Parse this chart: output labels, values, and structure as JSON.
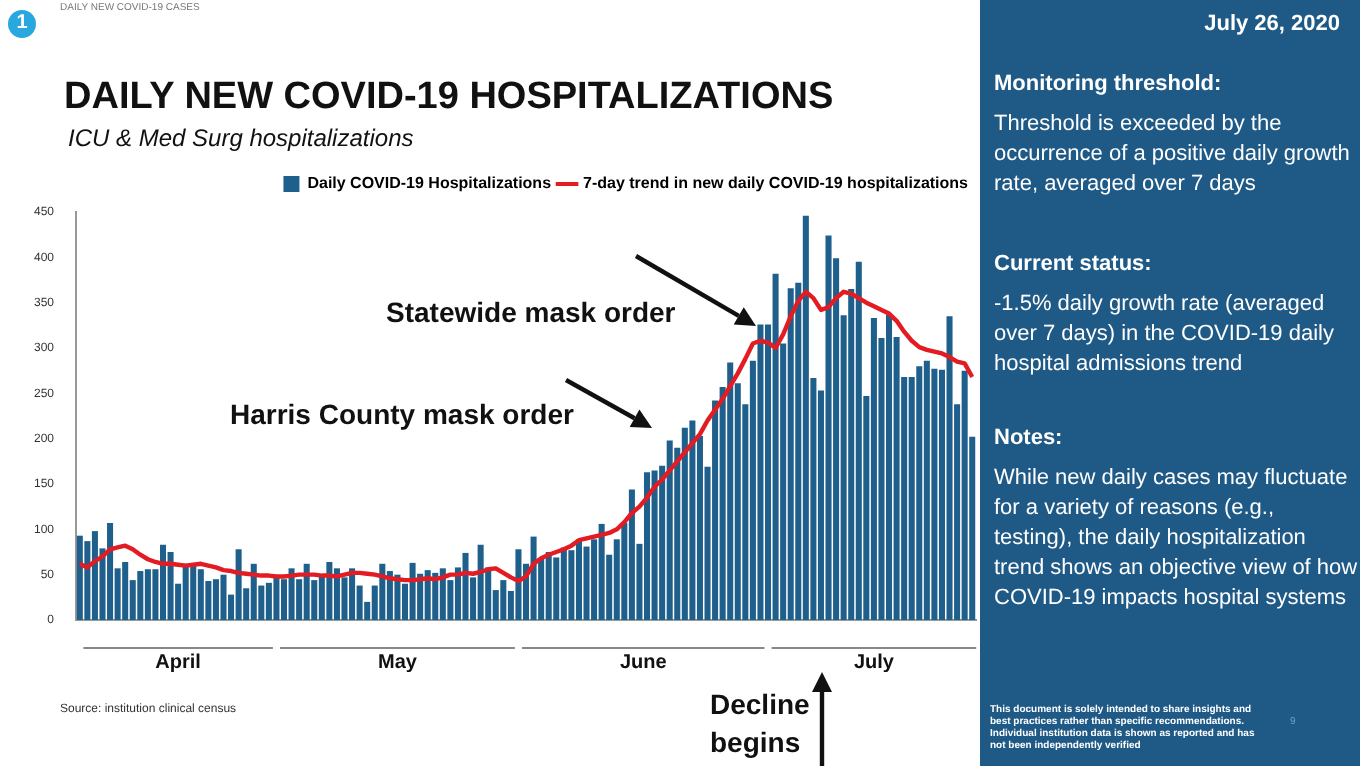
{
  "chart_data": {
    "type": "bar",
    "title": "DAILY NEW COVID-19 HOSPITALIZATIONS",
    "subtitle": "ICU & Med Surg hospitalizations",
    "categories": [
      null,
      null,
      null,
      null,
      null,
      null,
      null,
      null,
      null,
      null,
      null,
      null,
      null,
      null,
      null,
      null,
      null,
      null,
      null,
      null,
      null,
      null,
      null,
      null,
      null,
      null,
      null,
      null,
      null,
      null,
      null,
      null,
      null,
      null,
      null,
      null,
      null,
      null,
      null,
      null,
      null,
      null,
      null,
      null,
      null,
      null,
      null,
      null,
      null,
      null,
      null,
      null,
      null,
      null,
      null,
      null,
      null,
      null,
      null,
      null,
      null,
      null,
      null,
      null,
      null,
      null,
      null,
      null,
      null,
      null,
      null,
      null,
      null,
      null,
      null,
      null,
      null,
      null,
      null,
      null,
      null,
      null,
      null,
      null,
      null,
      null,
      null,
      null,
      null,
      null,
      null,
      null,
      null,
      null,
      null,
      null,
      null,
      null,
      null,
      null,
      null,
      null,
      null,
      null,
      null,
      null,
      null,
      null,
      null,
      null,
      null,
      null,
      null,
      null,
      null,
      null,
      null,
      null,
      null
    ],
    "series": [
      {
        "name": "Daily COVID-19 Hospitalizations",
        "color": "#1f5f8b",
        "values": [
          93,
          87,
          98,
          79,
          107,
          57,
          64,
          44,
          54,
          56,
          56,
          83,
          75,
          40,
          62,
          60,
          56,
          43,
          45,
          50,
          28,
          78,
          35,
          62,
          38,
          41,
          49,
          45,
          57,
          45,
          62,
          44,
          49,
          64,
          57,
          47,
          57,
          38,
          20,
          38,
          62,
          54,
          50,
          40,
          63,
          51,
          55,
          52,
          57,
          44,
          58,
          74,
          47,
          83,
          58,
          33,
          44,
          32,
          78,
          62,
          92,
          68,
          75,
          69,
          80,
          77,
          89,
          81,
          89,
          106,
          72,
          89,
          107,
          144,
          84,
          163,
          165,
          170,
          198,
          190,
          212,
          220,
          203,
          169,
          242,
          257,
          284,
          261,
          238,
          286,
          326,
          326,
          382,
          305,
          366,
          372,
          446,
          267,
          253,
          424,
          399,
          336,
          365,
          395,
          247,
          333,
          311,
          337,
          312,
          268,
          268,
          280,
          286,
          277,
          276,
          335,
          238,
          275,
          202
        ]
      },
      {
        "name": "7-day trend in new daily COVID-19 hospitalizations",
        "type": "line",
        "color": "#e31b23",
        "values": [
          62,
          58,
          65,
          70,
          78,
          80,
          82,
          78,
          72,
          67,
          64,
          62,
          62,
          61,
          60,
          61,
          62,
          60,
          58,
          55,
          54,
          52,
          51,
          50,
          49,
          49,
          48,
          48,
          49,
          50,
          50,
          50,
          49,
          49,
          48,
          50,
          52,
          52,
          51,
          50,
          48,
          46,
          45,
          44,
          44,
          45,
          46,
          45,
          47,
          50,
          50,
          52,
          51,
          53,
          56,
          57,
          52,
          47,
          43,
          48,
          62,
          68,
          72,
          75,
          78,
          82,
          88,
          90,
          92,
          94,
          96,
          100,
          108,
          118,
          125,
          135,
          147,
          155,
          165,
          175,
          185,
          195,
          205,
          220,
          232,
          244,
          258,
          272,
          288,
          305,
          308,
          306,
          300,
          315,
          335,
          352,
          362,
          355,
          342,
          345,
          355,
          362,
          360,
          355,
          350,
          346,
          342,
          338,
          330,
          318,
          308,
          301,
          298,
          296,
          294,
          290,
          285,
          283,
          268
        ]
      }
    ],
    "ylim": [
      0,
      450
    ],
    "yticks": [
      0,
      50,
      100,
      150,
      200,
      250,
      300,
      350,
      400,
      450
    ],
    "grid": false,
    "legend": "top right",
    "tick_labels": "y",
    "marker": "none",
    "annotations": [
      "1",
      "DAILY NEW COVID-19 CASES",
      "Statewide mask order",
      "Harris County mask order",
      "Decline begins",
      "April",
      "May",
      "June",
      "July",
      "Source: institution clinical census",
      "July 26, 2020",
      "Monitoring threshold:",
      "Threshold is exceeded by the occurrence of a positive daily growth rate, averaged over 7 days",
      "Current status:",
      "-1.5% daily growth rate (averaged over 7 days) in the COVID-19 daily hospital admissions trend",
      "Notes:",
      "While new daily cases may fluctuate for a variety of reasons (e.g., testing), the daily hospitalization trend shows an objective view of how COVID-19 impacts hospital systems",
      "This document is solely intended to share insights and best practices rather than specific recommendations. Individual institution data is shown as reported and has not been independently verified",
      "9"
    ]
  }
}
